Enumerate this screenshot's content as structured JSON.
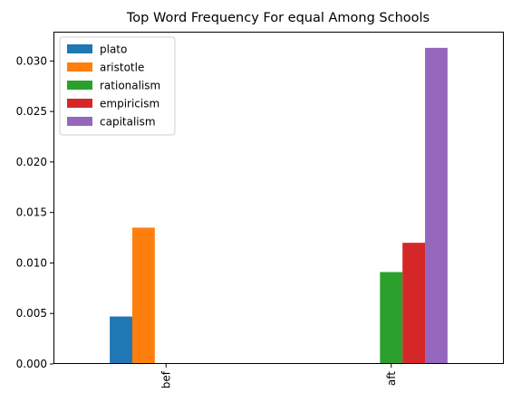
{
  "chart_data": {
    "type": "bar",
    "title": "Top Word Frequency For equal Among Schools",
    "xlabel": "",
    "ylabel": "",
    "categories": [
      "bef",
      "aft"
    ],
    "series": [
      {
        "name": "plato",
        "color": "#1f77b4",
        "values": [
          0.0047,
          0
        ]
      },
      {
        "name": "aristotle",
        "color": "#ff7f0e",
        "values": [
          0.0135,
          0
        ]
      },
      {
        "name": "rationalism",
        "color": "#2ca02c",
        "values": [
          0,
          0.0091
        ]
      },
      {
        "name": "empiricism",
        "color": "#d62728",
        "values": [
          0,
          0.012
        ]
      },
      {
        "name": "capitalism",
        "color": "#9467bd",
        "values": [
          0,
          0.0313
        ]
      }
    ],
    "ylim": [
      0,
      0.0329
    ],
    "yticks": [
      "0.000",
      "0.005",
      "0.010",
      "0.015",
      "0.020",
      "0.025",
      "0.030"
    ],
    "ytick_values": [
      0,
      0.005,
      0.01,
      0.015,
      0.02,
      0.025,
      0.03
    ],
    "xtick_rotation": "vertical",
    "grid": false,
    "legend_placement": "top-left"
  }
}
